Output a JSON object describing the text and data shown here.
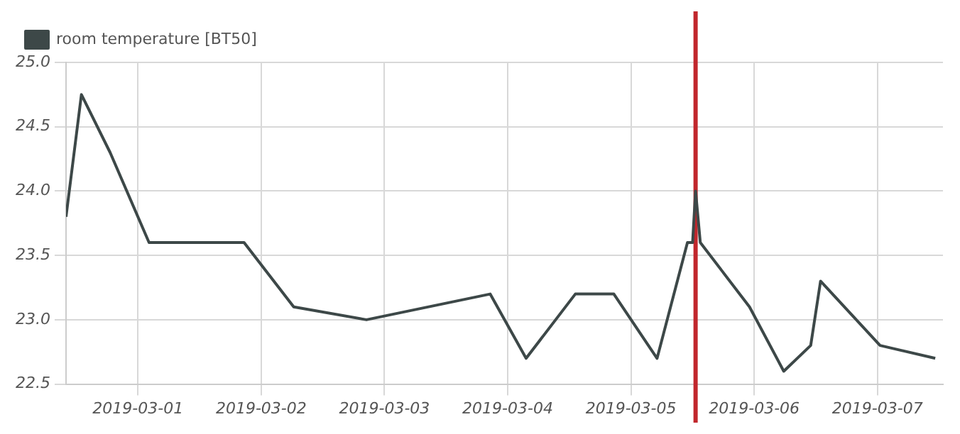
{
  "chart_data": {
    "type": "line",
    "x": [
      "2019-02-28T10:00",
      "2019-02-28T13:00",
      "2019-02-28T18:35",
      "2019-03-01T02:10",
      "2019-03-01T20:40",
      "2019-03-02T06:20",
      "2019-03-02T20:30",
      "2019-03-03T20:35",
      "2019-03-04T03:35",
      "2019-03-04T13:10",
      "2019-03-04T20:40",
      "2019-03-05T05:05",
      "2019-03-05T11:00",
      "2019-03-05T12:00",
      "2019-03-05T12:35",
      "2019-03-05T13:30",
      "2019-03-05T23:05",
      "2019-03-06T05:45",
      "2019-03-06T11:00",
      "2019-03-06T12:55",
      "2019-03-07T00:30",
      "2019-03-07T11:15"
    ],
    "series": [
      {
        "name": "room temperature [BT50]",
        "color": "#3d4848",
        "values": [
          23.8,
          24.75,
          24.3,
          23.6,
          23.6,
          23.1,
          23.0,
          23.2,
          22.7,
          23.2,
          23.2,
          22.7,
          23.6,
          23.6,
          24.0,
          23.6,
          23.1,
          22.6,
          22.8,
          23.3,
          22.8,
          22.7
        ]
      }
    ],
    "xlim": [
      "2019-02-28T10:00",
      "2019-03-07T12:45"
    ],
    "xticks": [
      "2019-03-01",
      "2019-03-02",
      "2019-03-03",
      "2019-03-04",
      "2019-03-05",
      "2019-03-06",
      "2019-03-07"
    ],
    "ylim": [
      22.5,
      25
    ],
    "yticks": [
      {
        "value": 22.5,
        "label": "22.5"
      },
      {
        "value": 23,
        "label": "23.0"
      },
      {
        "value": 23.5,
        "label": "23.5"
      },
      {
        "value": 24,
        "label": "24.0"
      },
      {
        "value": 24.5,
        "label": "24.5"
      },
      {
        "value": 25,
        "label": "25.0"
      }
    ],
    "ref_lines": [
      {
        "axis": "x",
        "value": "2019-03-05T12:35",
        "color": "#c1272d"
      }
    ],
    "grid": true,
    "legend": "top left",
    "marker": "none",
    "line_style": "solid"
  }
}
